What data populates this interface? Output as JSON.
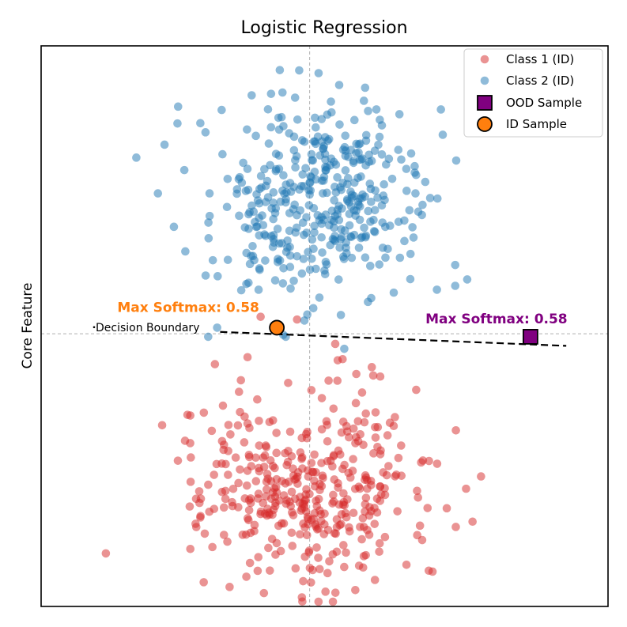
{
  "chart_data": {
    "type": "scatter",
    "title": "Logistic Regression",
    "xlabel": "",
    "ylabel": "Core Feature",
    "xlim": [
      -4.5,
      5.0
    ],
    "ylim": [
      -4.5,
      4.75
    ],
    "grid": false,
    "reference_lines": {
      "x": 0,
      "y": 0
    },
    "legend_position": "top-right",
    "colors": {
      "class1": "#d62728",
      "class2": "#1f77b4",
      "ood": "#800080",
      "id_sample": "#ff7f0e",
      "boundary": "#000000"
    },
    "series": [
      {
        "name": "Class 1 (ID)",
        "marker": "circle",
        "generator": {
          "n": 400,
          "center": [
            0,
            -2.5
          ],
          "spread": [
            0.95,
            0.85
          ],
          "seed": 7
        },
        "points": [
          [
            -0.13,
            -4.35
          ],
          [
            -2.0,
            -1.35
          ],
          [
            -1.85,
            -2.6
          ],
          [
            2.0,
            -2.1
          ],
          [
            0.05,
            -3.9
          ],
          [
            0.3,
            -3.95
          ]
        ]
      },
      {
        "name": "Class 2 (ID)",
        "marker": "circle",
        "generator": {
          "n": 400,
          "center": [
            0,
            2.2
          ],
          "spread": [
            0.95,
            0.8
          ],
          "seed": 13
        },
        "points": [
          [
            -0.5,
            4.35
          ],
          [
            0.15,
            4.3
          ],
          [
            2.2,
            3.7
          ],
          [
            -2.1,
            2.7
          ],
          [
            -0.4,
            -0.05
          ],
          [
            -1.7,
            -0.05
          ],
          [
            -1.55,
            0.1
          ]
        ]
      },
      {
        "name": "OOD Sample",
        "marker": "square",
        "points": [
          [
            3.7,
            -0.05
          ]
        ]
      },
      {
        "name": "ID Sample",
        "marker": "circle",
        "points": [
          [
            -0.55,
            0.1
          ]
        ]
      }
    ],
    "decision_boundary": {
      "label": "Decision Boundary",
      "points": [
        [
          -1.5,
          0.03
        ],
        [
          4.3,
          -0.2
        ]
      ]
    },
    "annotations": [
      {
        "text": "Max Softmax: 0.58",
        "anchor": "ID Sample",
        "color": "#ff7f0e"
      },
      {
        "text": "Max Softmax: 0.58",
        "anchor": "OOD Sample",
        "color": "#800080"
      }
    ]
  }
}
